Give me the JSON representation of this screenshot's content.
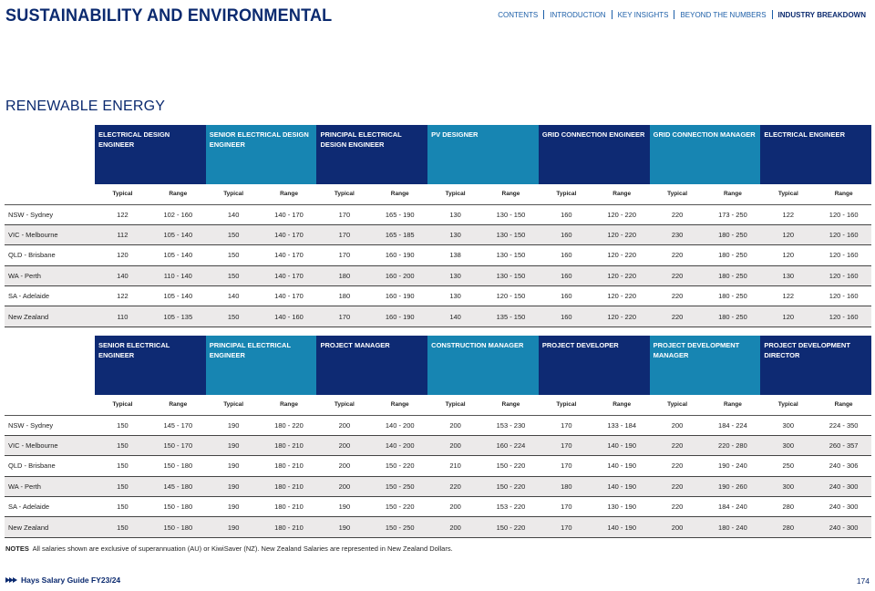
{
  "header": {
    "title": "SUSTAINABILITY AND ENVIRONMENTAL",
    "nav": [
      {
        "label": "CONTENTS",
        "active": false
      },
      {
        "label": "INTRODUCTION",
        "active": false
      },
      {
        "label": "KEY INSIGHTS",
        "active": false
      },
      {
        "label": "BEYOND THE NUMBERS",
        "active": false
      },
      {
        "label": "INDUSTRY BREAKDOWN",
        "active": true
      }
    ]
  },
  "section_title": "RENEWABLE ENERGY",
  "subheaders": {
    "typical": "Typical",
    "range": "Range"
  },
  "tables": [
    {
      "roles": [
        {
          "name": "ELECTRICAL DESIGN ENGINEER",
          "color": "#0e2a73"
        },
        {
          "name": "SENIOR ELECTRICAL DESIGN ENGINEER",
          "color": "#1785b2"
        },
        {
          "name": "PRINCIPAL ELECTRICAL DESIGN ENGINEER",
          "color": "#0e2a73"
        },
        {
          "name": "PV DESIGNER",
          "color": "#1785b2"
        },
        {
          "name": "GRID CONNECTION ENGINEER",
          "color": "#0e2a73"
        },
        {
          "name": "GRID CONNECTION MANAGER",
          "color": "#1785b2"
        },
        {
          "name": "ELECTRICAL ENGINEER",
          "color": "#0e2a73"
        }
      ],
      "rows": [
        {
          "location": "NSW - Sydney",
          "values": [
            [
              "122",
              "102 - 160"
            ],
            [
              "140",
              "140 - 170"
            ],
            [
              "170",
              "165 - 190"
            ],
            [
              "130",
              "130 - 150"
            ],
            [
              "160",
              "120 - 220"
            ],
            [
              "220",
              "173 - 250"
            ],
            [
              "122",
              "120 - 160"
            ]
          ]
        },
        {
          "location": "VIC - Melbourne",
          "values": [
            [
              "112",
              "105 - 140"
            ],
            [
              "150",
              "140 - 170"
            ],
            [
              "170",
              "165 - 185"
            ],
            [
              "130",
              "130 - 150"
            ],
            [
              "160",
              "120 - 220"
            ],
            [
              "230",
              "180 - 250"
            ],
            [
              "120",
              "120 - 160"
            ]
          ]
        },
        {
          "location": "QLD - Brisbane",
          "values": [
            [
              "120",
              "105 - 140"
            ],
            [
              "150",
              "140 - 170"
            ],
            [
              "170",
              "160 - 190"
            ],
            [
              "138",
              "130 - 150"
            ],
            [
              "160",
              "120 - 220"
            ],
            [
              "220",
              "180 - 250"
            ],
            [
              "120",
              "120 - 160"
            ]
          ]
        },
        {
          "location": "WA - Perth",
          "values": [
            [
              "140",
              "110 - 140"
            ],
            [
              "150",
              "140 - 170"
            ],
            [
              "180",
              "160 - 200"
            ],
            [
              "130",
              "130 - 150"
            ],
            [
              "160",
              "120 - 220"
            ],
            [
              "220",
              "180 - 250"
            ],
            [
              "130",
              "120 - 160"
            ]
          ]
        },
        {
          "location": "SA - Adelaide",
          "values": [
            [
              "122",
              "105 - 140"
            ],
            [
              "140",
              "140 - 170"
            ],
            [
              "180",
              "160 - 190"
            ],
            [
              "130",
              "120 - 150"
            ],
            [
              "160",
              "120 - 220"
            ],
            [
              "220",
              "180 - 250"
            ],
            [
              "122",
              "120 - 160"
            ]
          ]
        },
        {
          "location": "New Zealand",
          "values": [
            [
              "110",
              "105 - 135"
            ],
            [
              "150",
              "140 - 160"
            ],
            [
              "170",
              "160 - 190"
            ],
            [
              "140",
              "135 - 150"
            ],
            [
              "160",
              "120 - 220"
            ],
            [
              "220",
              "180 - 250"
            ],
            [
              "120",
              "120 - 160"
            ]
          ]
        }
      ]
    },
    {
      "roles": [
        {
          "name": "SENIOR ELECTRICAL ENGINEER",
          "color": "#0e2a73"
        },
        {
          "name": "PRINCIPAL ELECTRICAL ENGINEER",
          "color": "#1785b2"
        },
        {
          "name": "PROJECT MANAGER",
          "color": "#0e2a73"
        },
        {
          "name": "CONSTRUCTION MANAGER",
          "color": "#1785b2"
        },
        {
          "name": "PROJECT DEVELOPER",
          "color": "#0e2a73"
        },
        {
          "name": "PROJECT DEVELOPMENT MANAGER",
          "color": "#1785b2"
        },
        {
          "name": "PROJECT DEVELOPMENT DIRECTOR",
          "color": "#0e2a73"
        }
      ],
      "rows": [
        {
          "location": "NSW - Sydney",
          "values": [
            [
              "150",
              "145 - 170"
            ],
            [
              "190",
              "180 - 220"
            ],
            [
              "200",
              "140 - 200"
            ],
            [
              "200",
              "153 - 230"
            ],
            [
              "170",
              "133 - 184"
            ],
            [
              "200",
              "184 - 224"
            ],
            [
              "300",
              "224 - 350"
            ]
          ]
        },
        {
          "location": "VIC - Melbourne",
          "values": [
            [
              "150",
              "150 - 170"
            ],
            [
              "190",
              "180 - 210"
            ],
            [
              "200",
              "140 - 200"
            ],
            [
              "200",
              "160 - 224"
            ],
            [
              "170",
              "140 - 190"
            ],
            [
              "220",
              "220 - 280"
            ],
            [
              "300",
              "260 - 357"
            ]
          ]
        },
        {
          "location": "QLD - Brisbane",
          "values": [
            [
              "150",
              "150 - 180"
            ],
            [
              "190",
              "180 - 210"
            ],
            [
              "200",
              "150 - 220"
            ],
            [
              "210",
              "150 - 220"
            ],
            [
              "170",
              "140 - 190"
            ],
            [
              "220",
              "190 - 240"
            ],
            [
              "250",
              "240 - 306"
            ]
          ]
        },
        {
          "location": "WA - Perth",
          "values": [
            [
              "150",
              "145 - 180"
            ],
            [
              "190",
              "180 - 210"
            ],
            [
              "200",
              "150 - 250"
            ],
            [
              "220",
              "150 - 220"
            ],
            [
              "180",
              "140 - 190"
            ],
            [
              "220",
              "190 - 260"
            ],
            [
              "300",
              "240 - 300"
            ]
          ]
        },
        {
          "location": "SA - Adelaide",
          "values": [
            [
              "150",
              "150 - 180"
            ],
            [
              "190",
              "180 - 210"
            ],
            [
              "190",
              "150 - 220"
            ],
            [
              "200",
              "153 - 220"
            ],
            [
              "170",
              "130 - 190"
            ],
            [
              "220",
              "184 - 240"
            ],
            [
              "280",
              "240 - 300"
            ]
          ]
        },
        {
          "location": "New Zealand",
          "values": [
            [
              "150",
              "150 - 180"
            ],
            [
              "190",
              "180 - 210"
            ],
            [
              "190",
              "150 - 250"
            ],
            [
              "200",
              "150 - 220"
            ],
            [
              "170",
              "140 - 190"
            ],
            [
              "200",
              "180 - 240"
            ],
            [
              "280",
              "240 - 300"
            ]
          ]
        }
      ]
    }
  ],
  "notes": {
    "label": "NOTES",
    "text": "All salaries shown are exclusive of superannuation (AU) or KiwiSaver (NZ).  New Zealand Salaries are represented in New Zealand Dollars."
  },
  "footer": {
    "brand": "Hays Salary Guide FY23/24",
    "page_number": "174"
  }
}
